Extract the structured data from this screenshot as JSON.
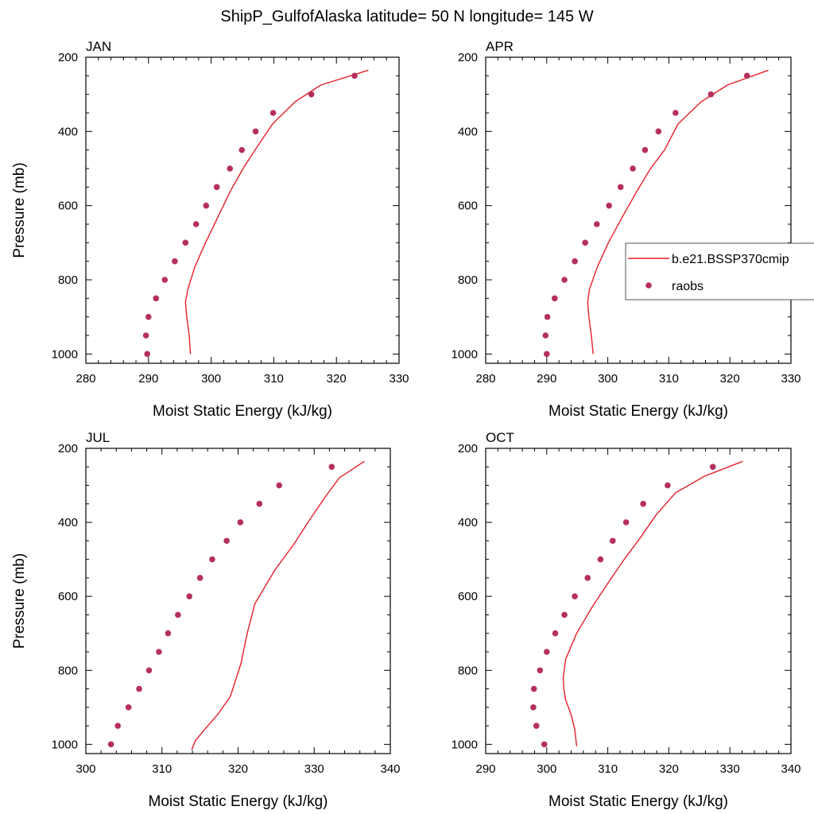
{
  "figure_title": "ShipP_GulfofAlaska  latitude= 50 N longitude= 145 W",
  "legend": {
    "model_label": "b.e21.BSSP370cmip",
    "obs_label": "raobs",
    "placement": "right of APR panel"
  },
  "colors": {
    "model_line": "#e8202a",
    "obs_marker": "#b5305a",
    "axis": "#000000"
  },
  "chart_data": [
    {
      "type": "line",
      "panel_title": "JAN",
      "xlabel": "Moist Static Energy (kJ/kg)",
      "ylabel": "Pressure (mb)",
      "xlim": [
        280,
        330
      ],
      "ylim": [
        1025,
        200
      ],
      "xticks": [
        280,
        290,
        300,
        310,
        320,
        330
      ],
      "yticks": [
        200,
        400,
        600,
        800,
        1000
      ],
      "series": [
        {
          "kind": "line",
          "x": [
            296.7,
            296.5,
            296.1,
            295.9,
            296.3,
            297.4,
            299.1,
            301.1,
            303.1,
            305.1,
            307.0,
            309.8,
            313.4,
            317.5,
            325.1
          ],
          "y": [
            1000,
            950,
            900,
            860,
            825,
            765,
            700,
            630,
            560,
            500,
            450,
            380,
            320,
            275,
            235
          ]
        },
        {
          "kind": "scatter",
          "x": [
            289.8,
            289.6,
            290.0,
            291.2,
            292.6,
            294.2,
            295.9,
            297.6,
            299.2,
            300.9,
            303.0,
            304.9,
            307.1,
            309.9,
            316.0,
            322.9
          ],
          "y": [
            1000,
            950,
            900,
            850,
            800,
            750,
            700,
            650,
            600,
            550,
            500,
            450,
            400,
            350,
            300,
            250
          ]
        }
      ]
    },
    {
      "type": "line",
      "panel_title": "APR",
      "xlabel": "Moist Static Energy (kJ/kg)",
      "ylabel": "",
      "xlim": [
        280,
        330
      ],
      "ylim": [
        1025,
        200
      ],
      "xticks": [
        280,
        290,
        300,
        310,
        320,
        330
      ],
      "yticks": [
        200,
        400,
        600,
        800,
        1000
      ],
      "series": [
        {
          "kind": "line",
          "x": [
            297.6,
            297.3,
            296.9,
            296.7,
            297.0,
            298.3,
            300.1,
            302.4,
            304.8,
            307.0,
            309.3,
            311.5,
            315.3,
            319.6,
            326.3
          ],
          "y": [
            1000,
            950,
            900,
            860,
            825,
            765,
            700,
            630,
            560,
            500,
            450,
            380,
            320,
            275,
            235
          ]
        },
        {
          "kind": "scatter",
          "x": [
            290.0,
            289.8,
            290.1,
            291.3,
            292.9,
            294.6,
            296.3,
            298.2,
            300.2,
            302.1,
            304.1,
            306.1,
            308.3,
            311.1,
            316.9,
            322.8
          ],
          "y": [
            1000,
            950,
            900,
            850,
            800,
            750,
            700,
            650,
            600,
            550,
            500,
            450,
            400,
            350,
            300,
            250
          ]
        }
      ]
    },
    {
      "type": "line",
      "panel_title": "JUL",
      "xlabel": "Moist Static Energy (kJ/kg)",
      "ylabel": "Pressure (mb)",
      "xlim": [
        300,
        340
      ],
      "ylim": [
        1025,
        200
      ],
      "xticks": [
        300,
        310,
        320,
        330,
        340
      ],
      "yticks": [
        200,
        400,
        600,
        800,
        1000
      ],
      "series": [
        {
          "kind": "line",
          "x": [
            313.9,
            314.4,
            315.6,
            317.3,
            319.0,
            320.4,
            321.2,
            322.2,
            324.8,
            327.3,
            329.5,
            331.5,
            333.3,
            336.6
          ],
          "y": [
            1015,
            990,
            960,
            920,
            870,
            780,
            700,
            620,
            530,
            460,
            390,
            330,
            280,
            235
          ]
        },
        {
          "kind": "scatter",
          "x": [
            303.3,
            304.2,
            305.6,
            307.0,
            308.3,
            309.6,
            310.8,
            312.1,
            313.6,
            315.0,
            316.6,
            318.5,
            320.3,
            322.8,
            325.4,
            332.3
          ],
          "y": [
            1000,
            950,
            900,
            850,
            800,
            750,
            700,
            650,
            600,
            550,
            500,
            450,
            400,
            350,
            300,
            250
          ]
        }
      ]
    },
    {
      "type": "line",
      "panel_title": "OCT",
      "xlabel": "Moist Static Energy (kJ/kg)",
      "ylabel": "",
      "xlim": [
        290,
        340
      ],
      "ylim": [
        1025,
        200
      ],
      "xticks": [
        290,
        300,
        310,
        320,
        330,
        340
      ],
      "yticks": [
        200,
        400,
        600,
        800,
        1000
      ],
      "series": [
        {
          "kind": "line",
          "x": [
            304.9,
            304.6,
            304.0,
            303.1,
            302.8,
            302.7,
            303.1,
            304.9,
            307.4,
            310.2,
            312.7,
            315.4,
            317.9,
            321.1,
            325.9,
            332.1
          ],
          "y": [
            1005,
            960,
            920,
            880,
            850,
            820,
            770,
            700,
            630,
            560,
            500,
            440,
            380,
            320,
            275,
            235
          ]
        },
        {
          "kind": "scatter",
          "x": [
            299.6,
            298.3,
            297.8,
            297.9,
            298.9,
            300.0,
            301.4,
            302.9,
            304.6,
            306.7,
            308.8,
            310.8,
            313.0,
            315.8,
            319.8,
            327.2
          ],
          "y": [
            1000,
            950,
            900,
            850,
            800,
            750,
            700,
            650,
            600,
            550,
            500,
            450,
            400,
            350,
            300,
            250
          ]
        }
      ]
    }
  ]
}
